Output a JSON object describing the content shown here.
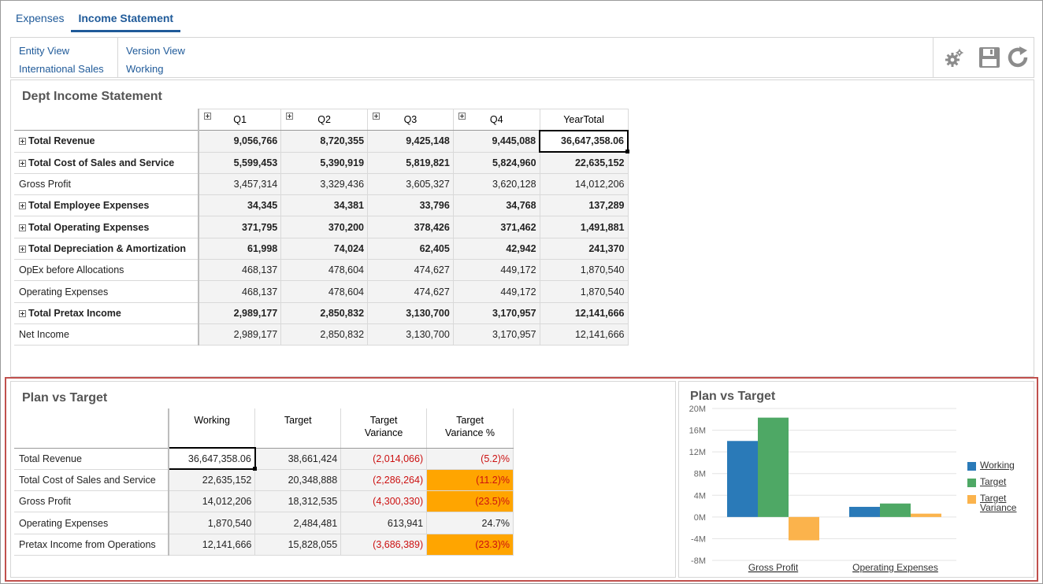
{
  "tabs": [
    {
      "label": "Expenses",
      "active": false
    },
    {
      "label": "Income Statement",
      "active": true
    }
  ],
  "pov": {
    "col1": [
      "Entity View",
      "International Sales"
    ],
    "col2": [
      "Version View",
      "Working"
    ],
    "tools": [
      "gear-icon",
      "save-icon",
      "refresh-icon"
    ]
  },
  "income_statement": {
    "title": "Dept Income Statement",
    "columns": [
      "Q1",
      "Q2",
      "Q3",
      "Q4",
      "YearTotal"
    ],
    "rows": [
      {
        "label": "Total Revenue",
        "bold": true,
        "values": [
          "9,056,766",
          "8,720,355",
          "9,425,148",
          "9,445,088",
          "36,647,358.06"
        ]
      },
      {
        "label": "Total Cost of Sales and Service",
        "bold": true,
        "values": [
          "5,599,453",
          "5,390,919",
          "5,819,821",
          "5,824,960",
          "22,635,152"
        ]
      },
      {
        "label": "Gross Profit",
        "bold": false,
        "values": [
          "3,457,314",
          "3,329,436",
          "3,605,327",
          "3,620,128",
          "14,012,206"
        ]
      },
      {
        "label": "Total Employee Expenses",
        "bold": true,
        "values": [
          "34,345",
          "34,381",
          "33,796",
          "34,768",
          "137,289"
        ]
      },
      {
        "label": "Total Operating Expenses",
        "bold": true,
        "values": [
          "371,795",
          "370,200",
          "378,426",
          "371,462",
          "1,491,881"
        ]
      },
      {
        "label": "Total Depreciation & Amortization",
        "bold": true,
        "values": [
          "61,998",
          "74,024",
          "62,405",
          "42,942",
          "241,370"
        ]
      },
      {
        "label": "OpEx before Allocations",
        "bold": false,
        "values": [
          "468,137",
          "478,604",
          "474,627",
          "449,172",
          "1,870,540"
        ]
      },
      {
        "label": "Operating Expenses",
        "bold": false,
        "values": [
          "468,137",
          "478,604",
          "474,627",
          "449,172",
          "1,870,540"
        ]
      },
      {
        "label": "Total Pretax Income",
        "bold": true,
        "values": [
          "2,989,177",
          "2,850,832",
          "3,130,700",
          "3,170,957",
          "12,141,666"
        ]
      },
      {
        "label": "Net Income",
        "bold": false,
        "values": [
          "2,989,177",
          "2,850,832",
          "3,130,700",
          "3,170,957",
          "12,141,666"
        ]
      }
    ]
  },
  "plan_vs_target": {
    "title": "Plan vs Target",
    "columns": [
      "Working",
      "Target",
      "Target Variance",
      "Target Variance %"
    ],
    "rows": [
      {
        "label": "Total Revenue",
        "values": [
          "36,647,358.06",
          "38,661,424",
          "(2,014,066)",
          "(5.2)%"
        ],
        "neg": [
          false,
          false,
          true,
          true
        ],
        "orange": false
      },
      {
        "label": "Total Cost of Sales and Service",
        "values": [
          "22,635,152",
          "20,348,888",
          "(2,286,264)",
          "(11.2)%"
        ],
        "neg": [
          false,
          false,
          true,
          true
        ],
        "orange": true
      },
      {
        "label": "Gross Profit",
        "values": [
          "14,012,206",
          "18,312,535",
          "(4,300,330)",
          "(23.5)%"
        ],
        "neg": [
          false,
          false,
          true,
          true
        ],
        "orange": true
      },
      {
        "label": "Operating Expenses",
        "values": [
          "1,870,540",
          "2,484,481",
          "613,941",
          "24.7%"
        ],
        "neg": [
          false,
          false,
          false,
          false
        ],
        "orange": false
      },
      {
        "label": "Pretax Income from Operations",
        "values": [
          "12,141,666",
          "15,828,055",
          "(3,686,389)",
          "(23.3)%"
        ],
        "neg": [
          false,
          false,
          true,
          true
        ],
        "orange": true
      }
    ]
  },
  "colors": {
    "working": "#2a7ab8",
    "target": "#4ea865",
    "variance": "#fbb34c",
    "highlight": "#ffa500",
    "negative": "#cc1111",
    "tab_blue": "#1f5a99"
  },
  "chart_data": {
    "type": "bar",
    "title": "Plan vs Target",
    "categories": [
      "Gross Profit",
      "Operating Expenses"
    ],
    "series": [
      {
        "name": "Working",
        "values": [
          14012206,
          1870540
        ]
      },
      {
        "name": "Target",
        "values": [
          18312535,
          2484481
        ]
      },
      {
        "name": "Target Variance",
        "values": [
          -4300330,
          613941
        ]
      }
    ],
    "ylim": [
      -8000000,
      20000000
    ],
    "yticks": [
      -8000000,
      -4000000,
      0,
      4000000,
      8000000,
      12000000,
      16000000,
      20000000
    ],
    "ytick_labels": [
      "-8M",
      "-4M",
      "0M",
      "4M",
      "8M",
      "12M",
      "16M",
      "20M"
    ],
    "grid": true,
    "legend_position": "right"
  }
}
